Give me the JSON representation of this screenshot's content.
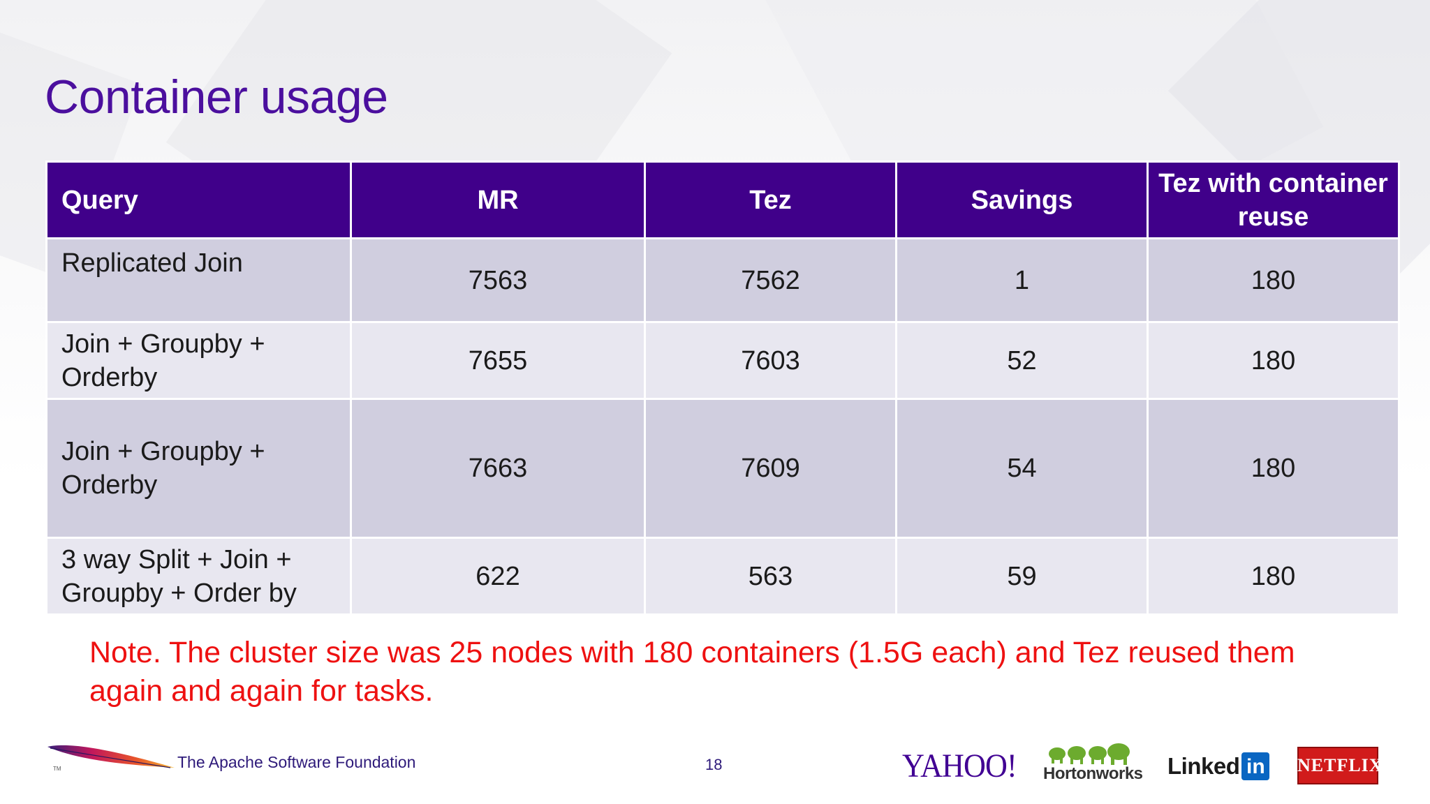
{
  "slide": {
    "title": "Container usage"
  },
  "table": {
    "headers": [
      "Query",
      "MR",
      "Tez",
      "Savings",
      "Tez with container reuse"
    ],
    "rows": [
      [
        "Replicated Join",
        "7563",
        "7562",
        "1",
        "180"
      ],
      [
        "Join + Groupby + Orderby",
        "7655",
        "7603",
        "52",
        "180"
      ],
      [
        "Join + Groupby + Orderby",
        "7663",
        "7609",
        "54",
        "180"
      ],
      [
        "3 way Split + Join + Groupby + Order by",
        "622",
        "563",
        "59",
        "180"
      ]
    ]
  },
  "note": "Note. The cluster size was 25 nodes with 180 containers (1.5G each) and Tez reused them again and again for tasks.",
  "footer": {
    "organization": "The Apache Software Foundation",
    "page_number": "18",
    "logos": {
      "yahoo": "YAHOO!",
      "hortonworks": "Hortonworks",
      "linkedin_text": "Linked",
      "linkedin_box": "in",
      "netflix": "NETFLIX"
    }
  },
  "colors": {
    "title": "#4b0f9e",
    "header_bg": "#40008a",
    "row_dark": "#d0cedf",
    "row_light": "#e8e7f0",
    "note": "#ee1111"
  }
}
